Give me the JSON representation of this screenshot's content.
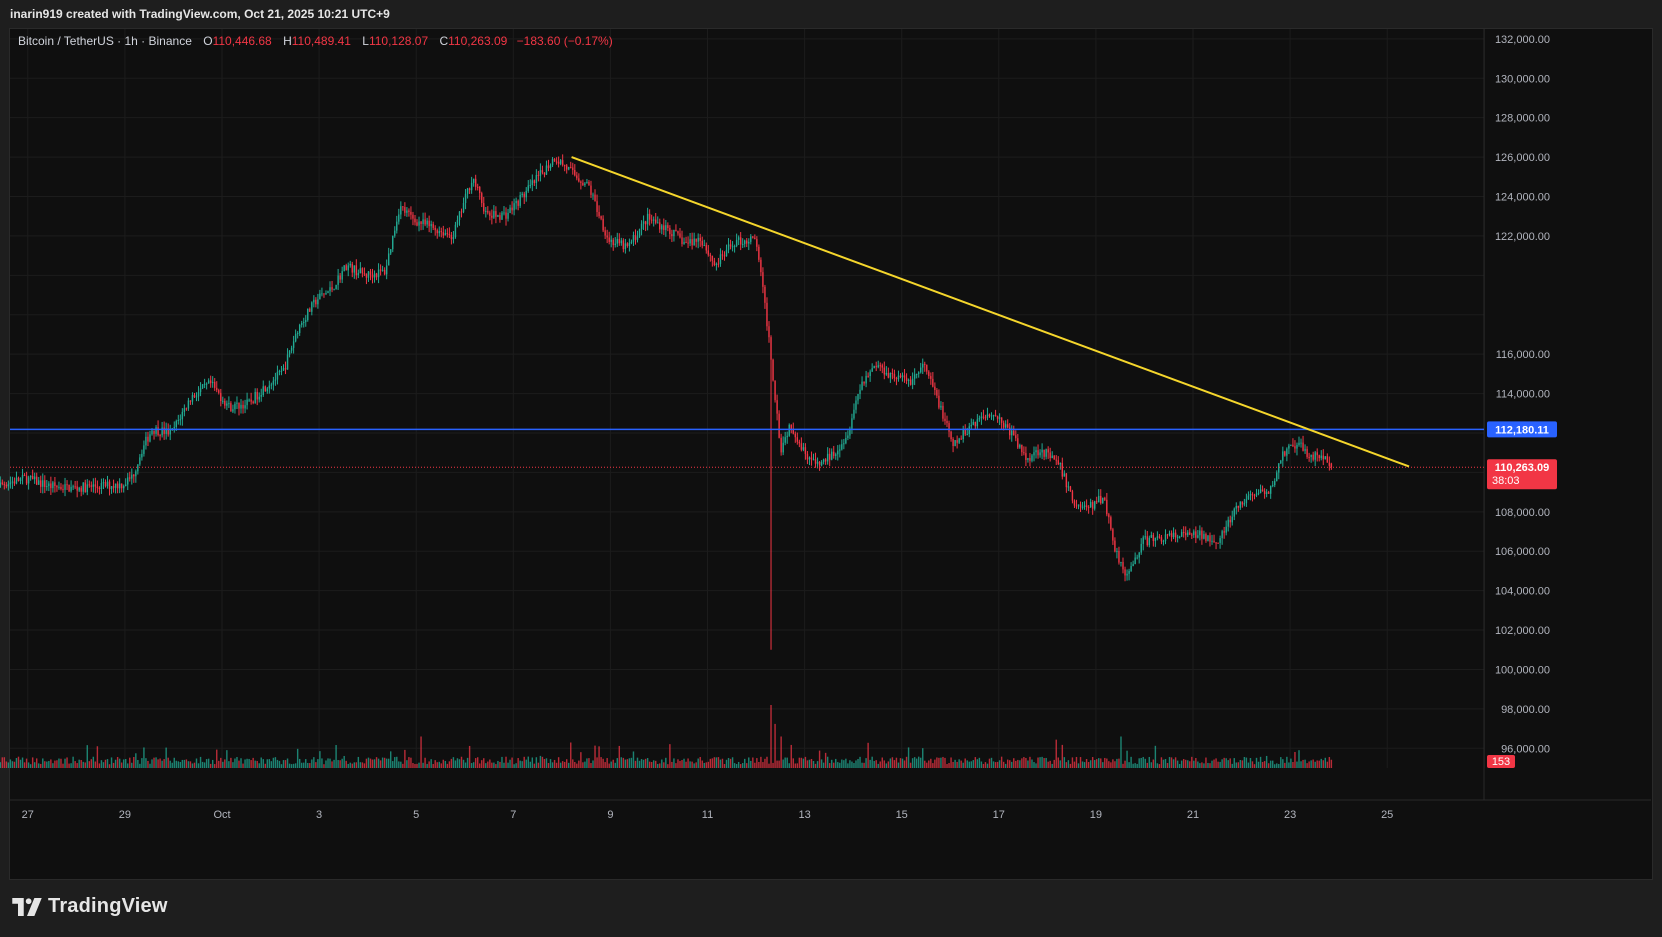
{
  "header": {
    "credit": "inarin919 created with TradingView.com, Oct 21, 2025 10:21 UTC+9"
  },
  "legend": {
    "symbol": "Bitcoin / TetherUS · 1h · Binance",
    "o_label": "O",
    "o": "110,446.68",
    "h_label": "H",
    "h": "110,489.41",
    "l_label": "L",
    "l": "110,128.07",
    "c_label": "C",
    "c": "110,263.09",
    "change": "−183.60 (−0.17%)"
  },
  "brand": {
    "name": "TradingView"
  },
  "colors": {
    "up": "#22ab94",
    "down": "#f23645",
    "trendline": "#f5d62c",
    "level": "#2962ff",
    "price": "#f23645"
  },
  "chart_data": {
    "type": "candlestick",
    "interval": "1h",
    "y_axis": {
      "min": 95000,
      "max": 132500,
      "ticks": [
        132000,
        130000,
        128000,
        126000,
        124000,
        122000,
        120000,
        118000,
        116000,
        114000,
        112000,
        110000,
        108000,
        106000,
        104000,
        102000,
        100000,
        98000,
        96000
      ],
      "tick_labels": [
        "132,000.00",
        "130,000.00",
        "128,000.00",
        "126,000.00",
        "124,000.00",
        "122,000.00",
        "",
        "",
        "116,000.00",
        "114,000.00",
        "",
        "",
        "108,000.00",
        "106,000.00",
        "104,000.00",
        "102,000.00",
        "100,000.00",
        "98,000.00",
        "96,000.00"
      ]
    },
    "x_axis": {
      "labels": [
        "27",
        "29",
        "Oct",
        "3",
        "5",
        "7",
        "9",
        "11",
        "13",
        "15",
        "17",
        "19",
        "21",
        "23",
        "25",
        "27"
      ],
      "label_days": [
        -4,
        -2,
        0,
        2,
        4,
        6,
        8,
        10,
        12,
        14,
        16,
        18,
        20,
        22,
        24,
        26
      ]
    },
    "anchors": [
      [
        -4.9,
        109000
      ],
      [
        -4.5,
        109400
      ],
      [
        -4,
        109700
      ],
      [
        -3.5,
        109300
      ],
      [
        -3,
        109200
      ],
      [
        -2.5,
        109300
      ],
      [
        -2,
        109400
      ],
      [
        -1.8,
        109800
      ],
      [
        -1.6,
        111200
      ],
      [
        -1.4,
        112200
      ],
      [
        -1,
        112000
      ],
      [
        -0.6,
        113800
      ],
      [
        -0.2,
        114500
      ],
      [
        0.2,
        113300
      ],
      [
        0.6,
        113500
      ],
      [
        0.9,
        114300
      ],
      [
        1.3,
        115100
      ],
      [
        1.6,
        117300
      ],
      [
        2,
        118800
      ],
      [
        2.3,
        119300
      ],
      [
        2.6,
        120500
      ],
      [
        3,
        120000
      ],
      [
        3.4,
        120200
      ],
      [
        3.7,
        123500
      ],
      [
        4,
        122800
      ],
      [
        4.4,
        122400
      ],
      [
        4.8,
        122000
      ],
      [
        5.2,
        125000
      ],
      [
        5.5,
        123000
      ],
      [
        5.9,
        123100
      ],
      [
        6.3,
        124200
      ],
      [
        6.9,
        126000
      ],
      [
        7.3,
        125100
      ],
      [
        7.6,
        124500
      ],
      [
        8.0,
        121800
      ],
      [
        8.4,
        121400
      ],
      [
        8.8,
        122900
      ],
      [
        9.2,
        122400
      ],
      [
        9.6,
        121600
      ],
      [
        9.9,
        121900
      ],
      [
        10.2,
        120500
      ],
      [
        10.6,
        121700
      ],
      [
        10.95,
        121800
      ],
      [
        11.05,
        121700
      ],
      [
        11.3,
        117000
      ],
      [
        11.45,
        113500
      ],
      [
        11.55,
        111200
      ],
      [
        11.75,
        112500
      ],
      [
        12,
        111200
      ],
      [
        12.3,
        110300
      ],
      [
        12.6,
        110900
      ],
      [
        12.9,
        111800
      ],
      [
        13.2,
        114500
      ],
      [
        13.5,
        115500
      ],
      [
        13.8,
        115000
      ],
      [
        14.2,
        114600
      ],
      [
        14.5,
        115400
      ],
      [
        14.8,
        113600
      ],
      [
        15.1,
        111300
      ],
      [
        15.5,
        112500
      ],
      [
        15.9,
        113100
      ],
      [
        16.3,
        112000
      ],
      [
        16.6,
        110700
      ],
      [
        16.9,
        111200
      ],
      [
        17.3,
        110300
      ],
      [
        17.6,
        108400
      ],
      [
        17.9,
        108200
      ],
      [
        18.2,
        108800
      ],
      [
        18.45,
        106000
      ],
      [
        18.7,
        104700
      ],
      [
        19,
        106500
      ],
      [
        19.4,
        106700
      ],
      [
        19.8,
        106800
      ],
      [
        20.2,
        106800
      ],
      [
        20.6,
        106600
      ],
      [
        20.9,
        108000
      ],
      [
        21.3,
        109000
      ],
      [
        21.6,
        108800
      ],
      [
        21.9,
        111000
      ],
      [
        22.2,
        111400
      ],
      [
        22.5,
        110800
      ],
      [
        22.7,
        110900
      ],
      [
        22.85,
        110300
      ]
    ],
    "wicks": [
      [
        11.3,
        101000
      ],
      [
        11.32,
        104000
      ]
    ],
    "volume_spikes": [
      [
        11.32,
        1.0
      ],
      [
        11.4,
        0.7
      ],
      [
        11.5,
        0.5
      ],
      [
        17.2,
        0.45
      ],
      [
        18.5,
        0.5
      ],
      [
        4.1,
        0.5
      ],
      [
        5.1,
        0.35
      ],
      [
        8.2,
        0.35
      ],
      [
        13.3,
        0.4
      ]
    ],
    "last": {
      "day": 22.85,
      "open": 110446.68,
      "high": 110489.41,
      "low": 110128.07,
      "close": 110263.09
    },
    "trendline": {
      "from": {
        "day": 7.2,
        "price": 126000
      },
      "to": {
        "day": 24.45,
        "price": 110300
      }
    },
    "horizontal_level": {
      "price": 112180.11,
      "label": "112,180.11"
    },
    "last_price": {
      "price": 110263.09,
      "label": "110,263.09",
      "countdown": "38:03"
    },
    "volume": {
      "last_label": "153"
    }
  }
}
